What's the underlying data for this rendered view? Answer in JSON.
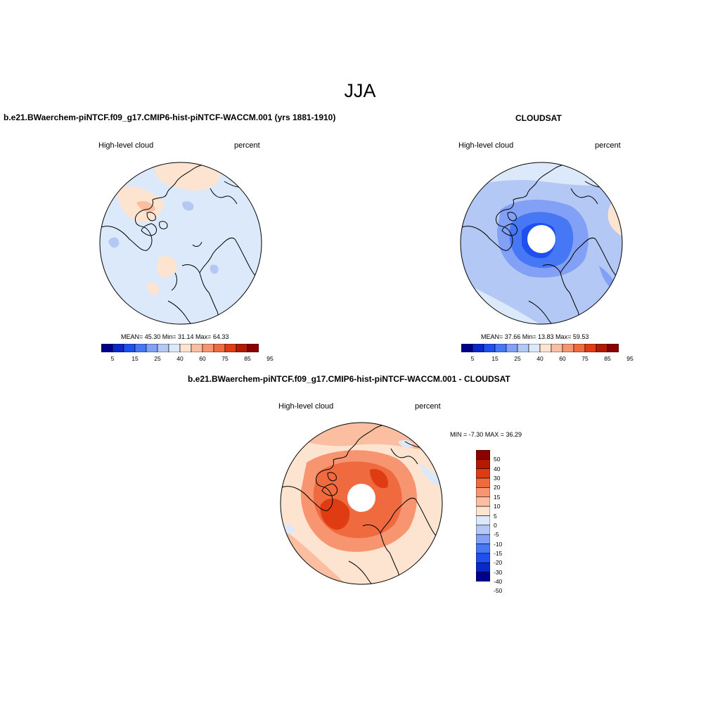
{
  "figure": {
    "title": "JJA"
  },
  "panels": [
    {
      "id": "model",
      "title": "b.e21.BWaerchem-piNTCF.f09_g17.CMIP6-hist-piNTCF-WACCM.001 (yrs 1881-1910)",
      "left_label": "High-level cloud",
      "right_label": "percent",
      "stats": "MEAN=  45.30  Min=  31.14  Max=  64.33"
    },
    {
      "id": "obs",
      "title": "CLOUDSAT",
      "left_label": "High-level cloud",
      "right_label": "percent",
      "stats": "MEAN=  37.66  Min=  13.83  Max=  59.53"
    },
    {
      "id": "diff",
      "title": "b.e21.BWaerchem-piNTCF.f09_g17.CMIP6-hist-piNTCF-WACCM.001 - CLOUDSAT",
      "left_label": "High-level cloud",
      "right_label": "percent",
      "stats": "MIN =  -7.30 MAX =  36.29"
    }
  ],
  "colorbars": {
    "abs": {
      "colors": [
        "#00008c",
        "#0a28c8",
        "#1e50f0",
        "#4678f5",
        "#82a0f5",
        "#b4c8f5",
        "#dce9fa",
        "#fde4d0",
        "#fbbea0",
        "#f79570",
        "#f06a40",
        "#e03c14",
        "#b41a00",
        "#8c0000"
      ],
      "tick_labels": [
        "5",
        "15",
        "25",
        "40",
        "60",
        "75",
        "85",
        "95"
      ],
      "tick_positions": [
        1,
        3,
        5,
        7,
        9,
        11,
        13,
        15
      ]
    },
    "diff": {
      "colors_top_to_bottom": [
        "#8c0000",
        "#b41a00",
        "#e03c14",
        "#f06a40",
        "#f79570",
        "#fbbea0",
        "#fde4d0",
        "#dce9fa",
        "#b4c8f5",
        "#82a0f5",
        "#4678f5",
        "#1e50f0",
        "#0a28c8",
        "#00008c"
      ],
      "tick_labels": [
        "50",
        "40",
        "30",
        "20",
        "15",
        "10",
        "5",
        "0",
        "-5",
        "-10",
        "-15",
        "-20",
        "-30",
        "-40",
        "-50"
      ]
    }
  },
  "map": {
    "projection": "north-polar stereographic",
    "colors": {
      "ocean_light_blue": "#dce9fa",
      "light_orange": "#fde4d0",
      "blue": "#82a0f5",
      "mid_blue": "#4678f5",
      "dark_blue": "#1e50f0",
      "salmon": "#fbbea0",
      "orange": "#f79570",
      "red_orange": "#f06a40",
      "red": "#e03c14",
      "missing": "#ffffff"
    }
  }
}
